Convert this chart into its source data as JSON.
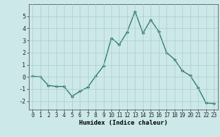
{
  "x": [
    0,
    1,
    2,
    3,
    4,
    5,
    6,
    7,
    8,
    9,
    10,
    11,
    12,
    13,
    14,
    15,
    16,
    17,
    18,
    19,
    20,
    21,
    22,
    23
  ],
  "y": [
    0.05,
    0.0,
    -0.7,
    -0.8,
    -0.8,
    -1.6,
    -1.2,
    -0.85,
    0.05,
    0.9,
    3.2,
    2.65,
    3.7,
    5.4,
    3.6,
    4.7,
    3.75,
    2.0,
    1.45,
    0.5,
    0.1,
    -0.9,
    -2.15,
    -2.2
  ],
  "line_color": "#2d7a6e",
  "marker": "D",
  "marker_size": 2.0,
  "linewidth": 1.0,
  "xlabel": "Humidex (Indice chaleur)",
  "xlim": [
    -0.5,
    23.5
  ],
  "ylim": [
    -2.7,
    6.0
  ],
  "yticks": [
    -2,
    -1,
    0,
    1,
    2,
    3,
    4,
    5
  ],
  "xticks": [
    0,
    1,
    2,
    3,
    4,
    5,
    6,
    7,
    8,
    9,
    10,
    11,
    12,
    13,
    14,
    15,
    16,
    17,
    18,
    19,
    20,
    21,
    22,
    23
  ],
  "background_color": "#cce8e8",
  "grid_color": "#aacccc",
  "tick_fontsize": 5.5,
  "xlabel_fontsize": 6.5
}
